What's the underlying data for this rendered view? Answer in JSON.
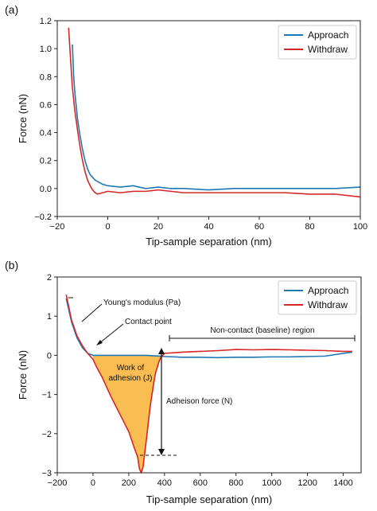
{
  "figure": {
    "panels": [
      {
        "label": "(a)",
        "xlabel": "Tip-sample separation (nm)",
        "ylabel": "Force (nN)",
        "legend": [
          "Approach",
          "Withdraw"
        ]
      },
      {
        "label": "(b)",
        "xlabel": "Tip-sample separation (nm)",
        "ylabel": "Force (nN)",
        "legend": [
          "Approach",
          "Withdraw"
        ],
        "annotations": {
          "youngs_modulus": "Young's modulus (Pa)",
          "contact_point": "Contact point",
          "baseline": "Non-contact (baseline) region",
          "work_line1": "Work of",
          "work_line2": "adhesion (J)",
          "adhesion_force": "Adheison force (N)"
        }
      }
    ]
  },
  "colors": {
    "approach": "#1f77b4",
    "withdraw": "#d62728",
    "adhesion_fill": "#f9b233"
  },
  "chart_data": [
    {
      "type": "line",
      "xlabel": "Tip-sample separation (nm)",
      "ylabel": "Force (nN)",
      "xlim": [
        -20,
        100
      ],
      "ylim": [
        -0.2,
        1.2
      ],
      "xticks": [
        -20,
        0,
        20,
        40,
        60,
        80,
        100
      ],
      "yticks": [
        -0.2,
        0.0,
        0.2,
        0.4,
        0.6,
        0.8,
        1.0,
        1.2
      ],
      "legend_position": "top-right",
      "series": [
        {
          "name": "Approach",
          "x": [
            -14,
            -13.5,
            -13,
            -12,
            -11,
            -10,
            -9,
            -8,
            -7,
            -6,
            -5,
            -4,
            -2,
            0,
            5,
            10,
            15,
            20,
            25,
            30,
            40,
            50,
            60,
            70,
            80,
            90,
            100
          ],
          "y": [
            1.03,
            0.8,
            0.68,
            0.5,
            0.38,
            0.28,
            0.2,
            0.14,
            0.1,
            0.08,
            0.06,
            0.05,
            0.03,
            0.02,
            0.01,
            0.02,
            0.0,
            0.01,
            0.0,
            0.0,
            -0.01,
            0.0,
            0.0,
            0.0,
            0.0,
            0.0,
            0.01
          ]
        },
        {
          "name": "Withdraw",
          "x": [
            -15.5,
            -15,
            -14,
            -13,
            -12,
            -11,
            -10,
            -9,
            -8,
            -7,
            -6,
            -5,
            -4,
            -2,
            0,
            5,
            10,
            15,
            20,
            25,
            30,
            40,
            50,
            60,
            70,
            80,
            90,
            100
          ],
          "y": [
            1.15,
            1.0,
            0.72,
            0.55,
            0.42,
            0.3,
            0.2,
            0.12,
            0.06,
            0.02,
            -0.01,
            -0.03,
            -0.04,
            -0.03,
            -0.02,
            -0.03,
            -0.02,
            -0.02,
            -0.01,
            -0.02,
            -0.03,
            -0.03,
            -0.03,
            -0.03,
            -0.03,
            -0.04,
            -0.04,
            -0.06
          ]
        }
      ]
    },
    {
      "type": "line",
      "xlabel": "Tip-sample separation (nm)",
      "ylabel": "Force (nN)",
      "xlim": [
        -200,
        1500
      ],
      "ylim": [
        -3,
        2
      ],
      "xticks": [
        -200,
        0,
        200,
        400,
        600,
        800,
        1000,
        1200,
        1400
      ],
      "yticks": [
        -3,
        -2,
        -1,
        0,
        1,
        2
      ],
      "legend_position": "top-right",
      "series": [
        {
          "name": "Approach",
          "x": [
            -150,
            -120,
            -90,
            -60,
            -30,
            0,
            50,
            100,
            200,
            300,
            400,
            500,
            600,
            700,
            800,
            900,
            1000,
            1100,
            1200,
            1300,
            1400,
            1450
          ],
          "y": [
            1.45,
            0.85,
            0.45,
            0.2,
            0.05,
            0.0,
            0.0,
            0.0,
            0.0,
            0.0,
            -0.03,
            -0.05,
            -0.05,
            -0.06,
            -0.05,
            -0.05,
            -0.04,
            -0.04,
            -0.03,
            -0.02,
            0.05,
            0.08
          ]
        },
        {
          "name": "Withdraw",
          "x": [
            -150,
            -120,
            -90,
            -60,
            -30,
            -10,
            0,
            20,
            50,
            80,
            100,
            150,
            200,
            230,
            250,
            260,
            270,
            280,
            300,
            320,
            340,
            350,
            360,
            370,
            380,
            390,
            400,
            500,
            600,
            700,
            800,
            900,
            1000,
            1100,
            1200,
            1300,
            1400,
            1450
          ],
          "y": [
            1.55,
            0.9,
            0.5,
            0.25,
            0.05,
            -0.05,
            -0.1,
            -0.3,
            -0.55,
            -0.85,
            -1.05,
            -1.5,
            -1.95,
            -2.35,
            -2.6,
            -2.9,
            -3.0,
            -2.85,
            -2.1,
            -1.3,
            -0.7,
            -0.45,
            -0.3,
            -0.15,
            -0.05,
            0.0,
            0.05,
            0.08,
            0.1,
            0.12,
            0.15,
            0.14,
            0.15,
            0.14,
            0.13,
            0.12,
            0.1,
            0.1
          ]
        }
      ]
    }
  ]
}
